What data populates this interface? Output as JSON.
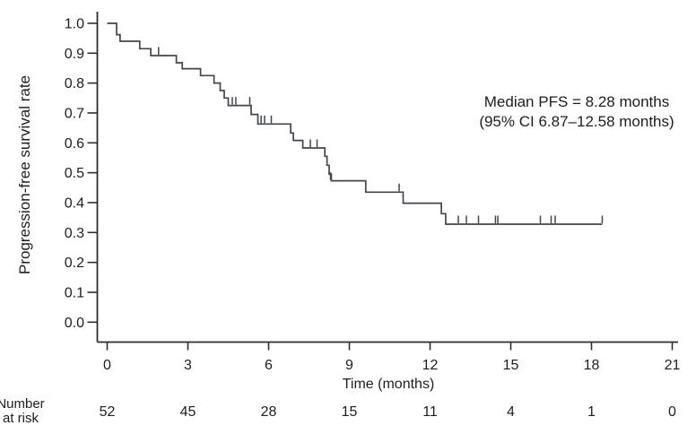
{
  "figure": {
    "background_color": "#ffffff"
  },
  "chart_data": {
    "type": "line",
    "chart_style": "kaplan-meier-step",
    "title": "",
    "xlabel": "Time (months)",
    "ylabel": "Progression-free survival rate",
    "xlim": [
      0,
      21
    ],
    "ylim": [
      0.0,
      1.0
    ],
    "grid": false,
    "legend": "none",
    "x_ticks": [
      0,
      3,
      6,
      9,
      12,
      15,
      18,
      21
    ],
    "y_ticks": [
      "1.0",
      "0.9",
      "0.8",
      "0.7",
      "0.6",
      "0.5",
      "0.4",
      "0.3",
      "0.2",
      "0.1",
      "0.0"
    ],
    "annotation": {
      "line1": "Median PFS = 8.28 months",
      "line2": "(95% CI 6.87–12.58 months)"
    },
    "line_color": "#41454e",
    "axis_color": "#2e2e2e",
    "text_color": "#1d1d1d",
    "series": [
      {
        "name": "Progression-free survival",
        "steps": [
          [
            0,
            1.0
          ],
          [
            0.35,
            0.962
          ],
          [
            0.48,
            0.94
          ],
          [
            1.21,
            0.915
          ],
          [
            1.62,
            0.892
          ],
          [
            2.57,
            0.868
          ],
          [
            2.79,
            0.848
          ],
          [
            3.47,
            0.825
          ],
          [
            3.97,
            0.8
          ],
          [
            4.2,
            0.775
          ],
          [
            4.35,
            0.75
          ],
          [
            4.5,
            0.725
          ],
          [
            5.35,
            0.695
          ],
          [
            5.6,
            0.663
          ],
          [
            6.82,
            0.633
          ],
          [
            6.92,
            0.608
          ],
          [
            7.27,
            0.583
          ],
          [
            8.09,
            0.555
          ],
          [
            8.17,
            0.525
          ],
          [
            8.25,
            0.495
          ],
          [
            8.33,
            0.473
          ],
          [
            9.61,
            0.435
          ],
          [
            11.0,
            0.398
          ],
          [
            12.42,
            0.363
          ],
          [
            12.58,
            0.328
          ]
        ],
        "end_time": 18.4,
        "censor_marks": [
          [
            1.91,
            0.892
          ],
          [
            4.65,
            0.725
          ],
          [
            4.78,
            0.725
          ],
          [
            5.3,
            0.725
          ],
          [
            5.72,
            0.663
          ],
          [
            5.85,
            0.663
          ],
          [
            6.1,
            0.663
          ],
          [
            7.55,
            0.583
          ],
          [
            7.8,
            0.583
          ],
          [
            8.3,
            0.473
          ],
          [
            10.85,
            0.435
          ],
          [
            13.05,
            0.328
          ],
          [
            13.35,
            0.328
          ],
          [
            13.8,
            0.328
          ],
          [
            14.43,
            0.328
          ],
          [
            14.52,
            0.328
          ],
          [
            16.1,
            0.328
          ],
          [
            16.5,
            0.328
          ],
          [
            16.65,
            0.328
          ],
          [
            18.4,
            0.328
          ]
        ]
      }
    ],
    "risk_table": {
      "label_line1": "Number",
      "label_line2": "at risk",
      "times": [
        0,
        3,
        6,
        9,
        12,
        15,
        18,
        21
      ],
      "values": [
        52,
        45,
        28,
        15,
        11,
        4,
        1,
        0
      ]
    }
  }
}
